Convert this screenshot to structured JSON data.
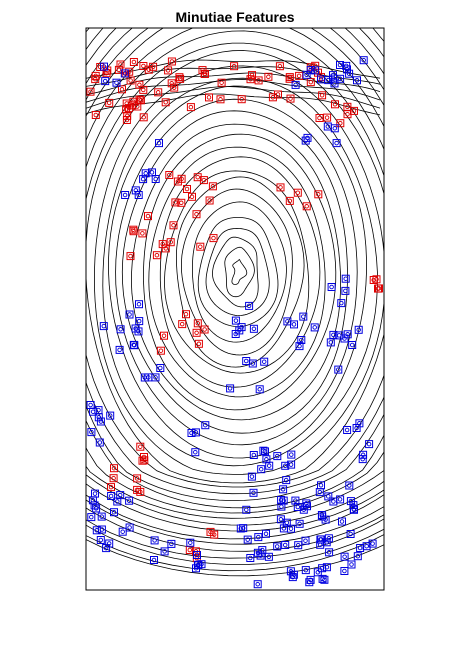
{
  "figure": {
    "title": "Minutiae Features",
    "colors": {
      "ridge": "#000000",
      "termination": "#e00000",
      "bifurcation": "#0000e0",
      "frame": "#000000",
      "background": "#ffffff"
    },
    "legend": "none",
    "grid": false,
    "ticks": false
  }
}
